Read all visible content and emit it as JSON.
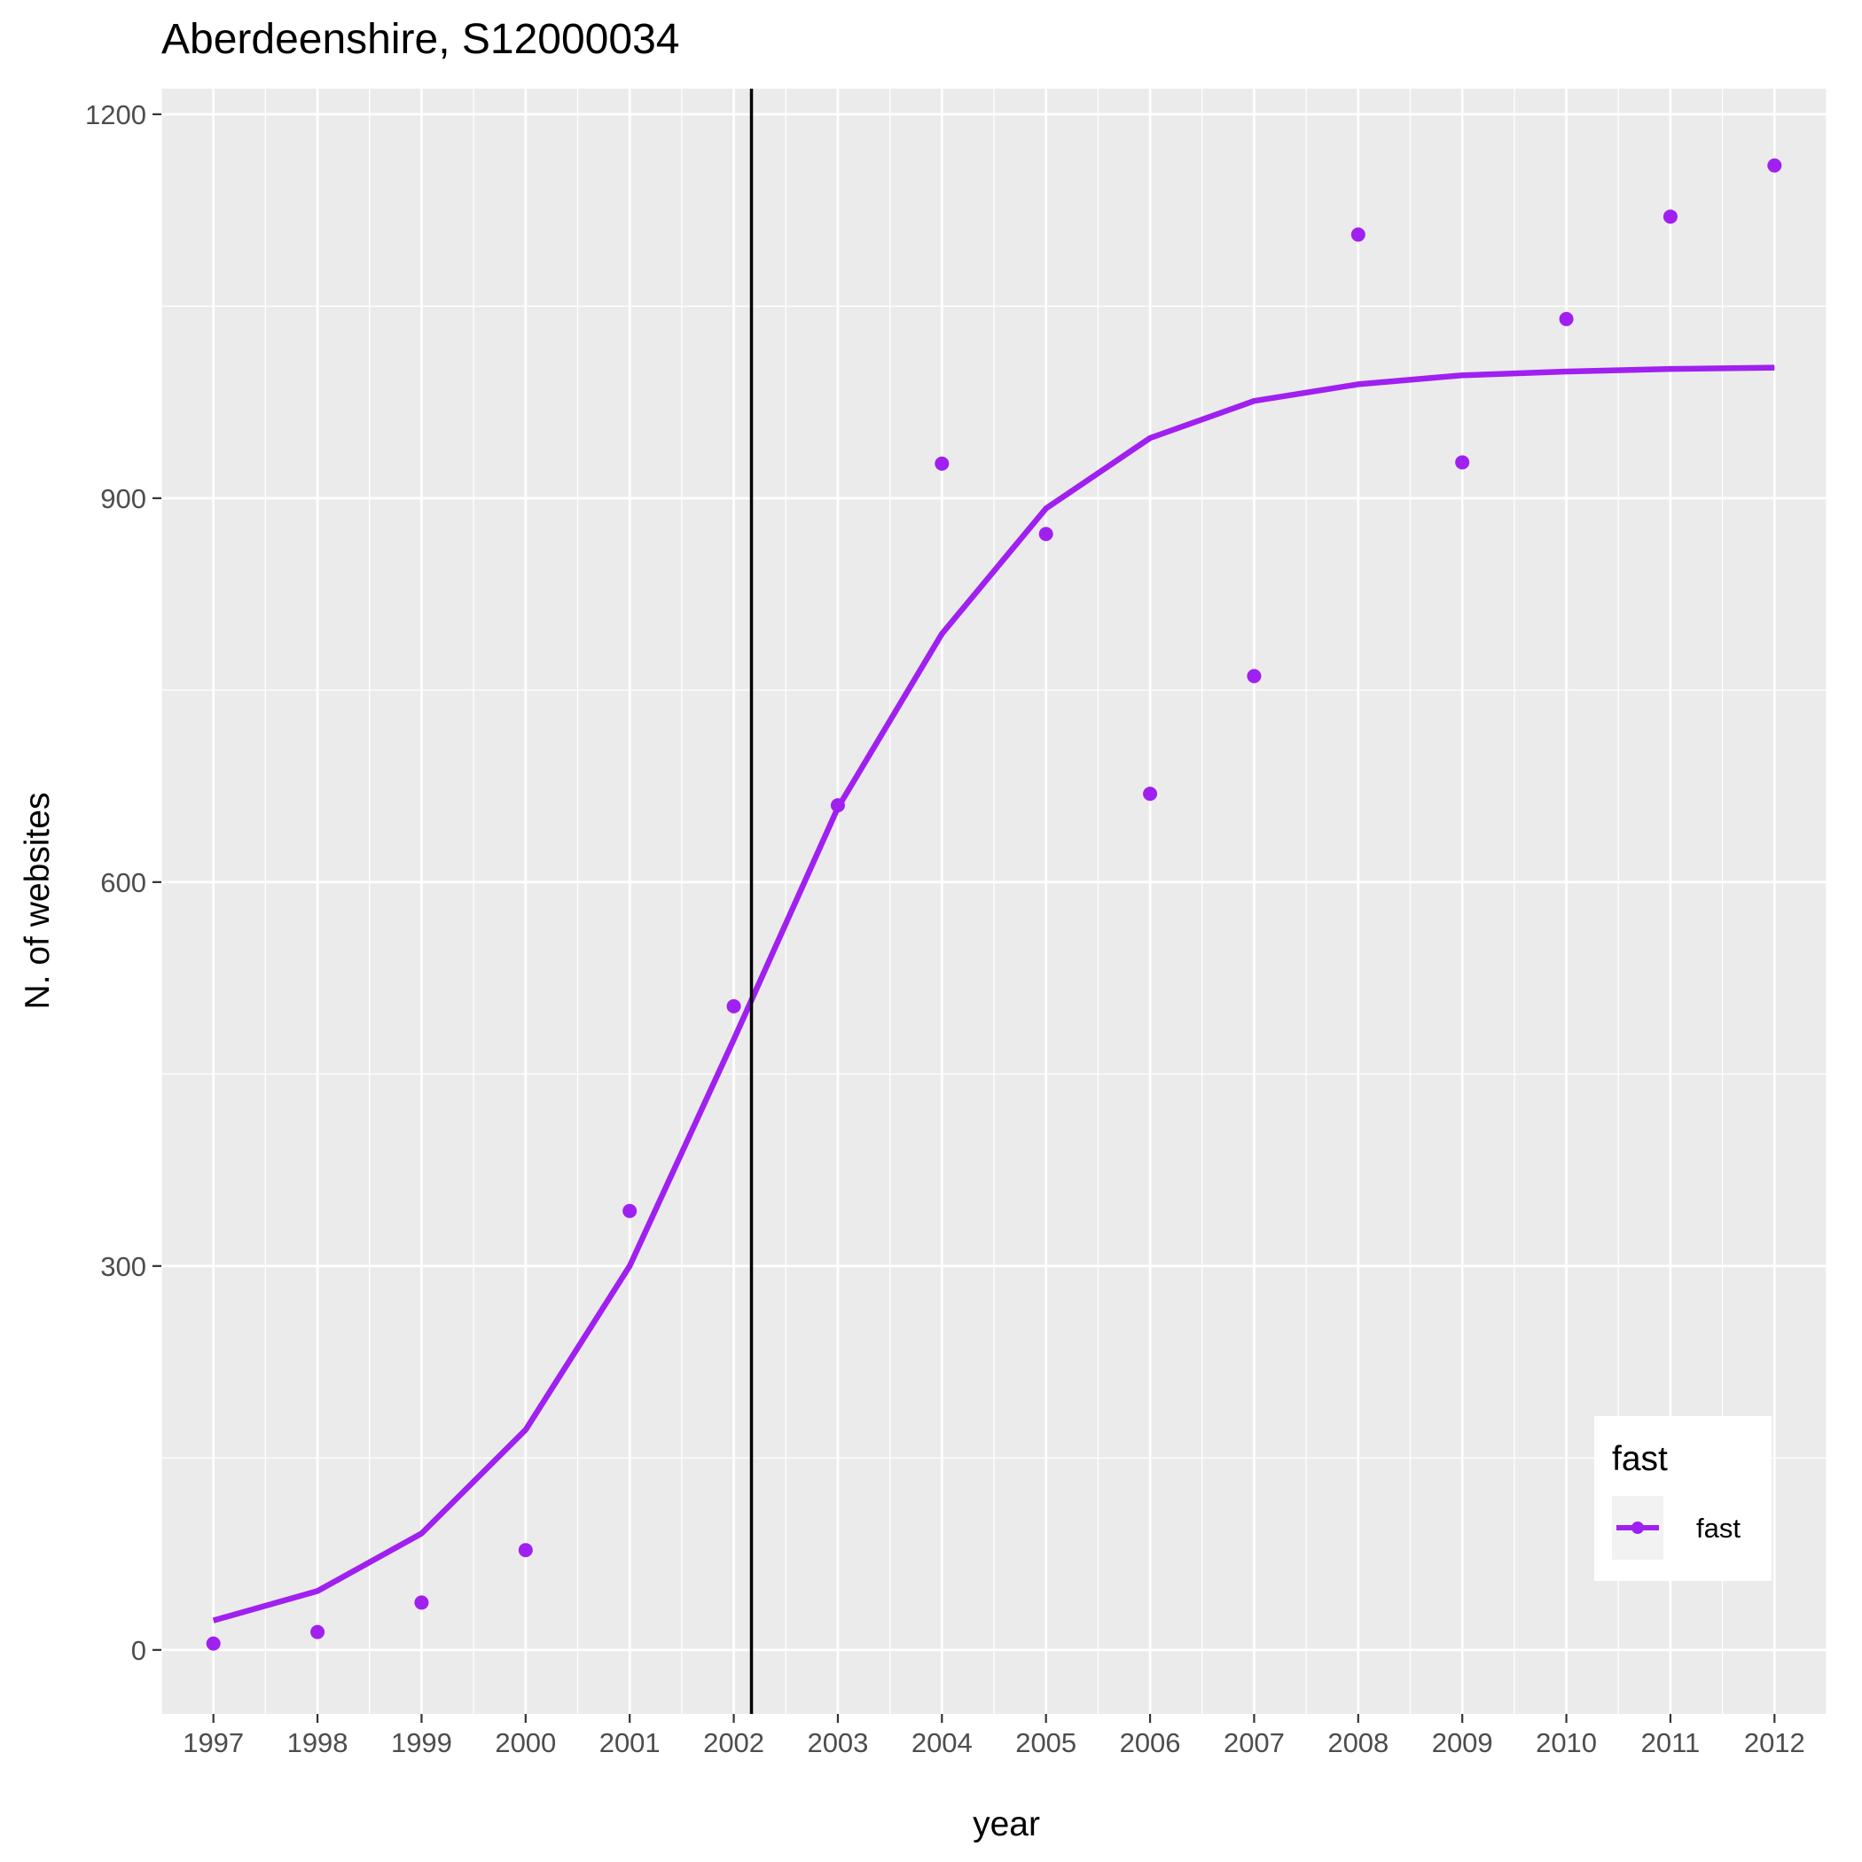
{
  "chart_data": {
    "type": "scatter",
    "title": "Aberdeenshire, S12000034",
    "xlabel": "year",
    "ylabel": "N. of websites",
    "x": [
      1997,
      1998,
      1999,
      2000,
      2001,
      2002,
      2003,
      2004,
      2005,
      2006,
      2007,
      2008,
      2009,
      2010,
      2011,
      2012
    ],
    "x_tick_labels": [
      "1997",
      "1998",
      "1999",
      "2000",
      "2001",
      "2002",
      "2003",
      "2004",
      "2005",
      "2006",
      "2007",
      "2008",
      "2009",
      "2010",
      "2011",
      "2012"
    ],
    "y_ticks": [
      0,
      300,
      600,
      900,
      1200
    ],
    "y_tick_labels": [
      "0",
      "300",
      "600",
      "900",
      "1200"
    ],
    "xlim": [
      1996.5,
      2012.5
    ],
    "ylim": [
      -50,
      1220
    ],
    "grid": true,
    "vline_x": 2002.17,
    "legend": {
      "title": "fast",
      "position": "bottom-right",
      "entries": [
        "fast"
      ]
    },
    "series": [
      {
        "name": "fast",
        "kind": "points",
        "color": "#a020f0",
        "values": [
          5,
          14,
          37,
          78,
          343,
          503,
          660,
          927,
          872,
          669,
          761,
          1106,
          928,
          1040,
          1120,
          1160
        ]
      },
      {
        "name": "fast",
        "kind": "line",
        "color": "#a020f0",
        "values": [
          23,
          46,
          91,
          172,
          300,
          477,
          658,
          794,
          892,
          947,
          976,
          989,
          996,
          999,
          1001,
          1002
        ]
      }
    ]
  }
}
